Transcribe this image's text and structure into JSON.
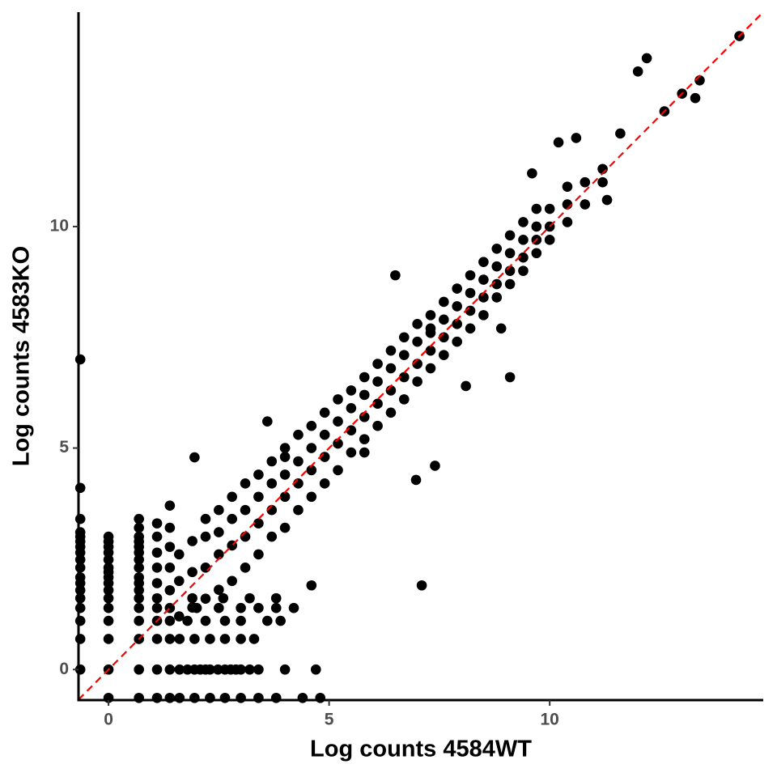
{
  "chart_data": {
    "type": "scatter",
    "x_label": "Log counts 4584WT",
    "y_label": "Log counts 4583KO",
    "xlim": [
      -0.68,
      14.84
    ],
    "ylim": [
      -0.69,
      14.84
    ],
    "xticks": [
      0,
      5,
      10
    ],
    "yticks": [
      0,
      5,
      10
    ],
    "color": "#000000",
    "reference_line": {
      "slope": 1,
      "intercept": 0,
      "color": "#ff0000",
      "dashed": true
    },
    "x": [
      1.6,
      1.6,
      1.6,
      1.9,
      1.9,
      1.9,
      2.2,
      2.2,
      2.2,
      2.2,
      2.5,
      2.5,
      2.5,
      2.5,
      2.8,
      2.8,
      2.8,
      2.8,
      3.1,
      3.1,
      3.1,
      3.1,
      3.4,
      3.4,
      3.4,
      3.4,
      3.7,
      3.7,
      3.7,
      3.7,
      4.0,
      4.0,
      4.0,
      4.0,
      4.3,
      4.3,
      4.3,
      4.3,
      4.6,
      4.6,
      4.6,
      4.6,
      4.9,
      4.9,
      4.9,
      4.9,
      5.2,
      5.2,
      5.2,
      5.2,
      5.5,
      5.5,
      5.5,
      5.5,
      5.8,
      5.8,
      5.8,
      5.8,
      6.1,
      6.1,
      6.1,
      6.1,
      6.4,
      6.4,
      6.4,
      6.4,
      6.7,
      6.7,
      6.7,
      6.7,
      7.0,
      7.0,
      7.0,
      7.0,
      7.3,
      7.3,
      7.3,
      7.3,
      7.6,
      7.6,
      7.6,
      7.6,
      7.9,
      7.9,
      7.9,
      7.9,
      8.2,
      8.2,
      8.2,
      8.2,
      8.5,
      8.5,
      8.5,
      8.5,
      8.8,
      8.8,
      8.8,
      8.8,
      9.1,
      9.1,
      9.1,
      9.1,
      9.4,
      9.4,
      9.4,
      9.4,
      9.7,
      9.7,
      9.7,
      9.7,
      10.0,
      10.0,
      10.0,
      10.4,
      10.4,
      10.4,
      10.8,
      10.8,
      11.2,
      11.2,
      12.0,
      12.2,
      13.3,
      13.4,
      14.3,
      13.0,
      12.6,
      11.6,
      10.6,
      10.2,
      9.6,
      11.3,
      9.1,
      7.1,
      5.8,
      4.6,
      4.0,
      8.9,
      7.3,
      6.5,
      7.4,
      8.1,
      3.6,
      1.95,
      6.97,
      -0.64,
      -0.64,
      -0.64,
      -0.64,
      -0.64,
      -0.64,
      -0.64,
      -0.64,
      -0.64,
      -0.64,
      -0.64,
      -0.64,
      -0.64,
      -0.64,
      -0.64,
      -0.64,
      -0.64,
      -0.64,
      0,
      0,
      0,
      0,
      0,
      0,
      0,
      0,
      0,
      0,
      0,
      0,
      0,
      0,
      0,
      0,
      0.69,
      0.69,
      0.69,
      0.69,
      0.69,
      0.69,
      0.69,
      0.69,
      0.69,
      0.69,
      0.69,
      0.69,
      0.69,
      0.69,
      0.69,
      0.69,
      0.69,
      1.1,
      1.1,
      1.1,
      1.1,
      1.1,
      1.1,
      1.1,
      1.1,
      1.1,
      1.1,
      1.1,
      1.39,
      1.39,
      1.39,
      1.39,
      1.39,
      1.39,
      1.39,
      1.39,
      1.39,
      1.39,
      1.61,
      1.79,
      1.95,
      2.08,
      2.2,
      2.3,
      2.48,
      2.64,
      2.77,
      2.89,
      3.0,
      3.2,
      3.4,
      4.0,
      4.7,
      1.61,
      1.95,
      2.3,
      2.64,
      3.0,
      3.4,
      3.8,
      4.4,
      4.8,
      1.61,
      1.95,
      2.3,
      2.64,
      3.0,
      3.3,
      1.79,
      2.2,
      2.64,
      3.0,
      3.6,
      3.9,
      2.0,
      2.5,
      3.0,
      3.4,
      3.8,
      4.2,
      1.9,
      2.6,
      3.2,
      3.8
    ],
    "values": [
      1.2,
      2.0,
      2.6,
      1.4,
      2.2,
      2.9,
      1.6,
      2.3,
      3.0,
      3.4,
      1.8,
      2.6,
      3.1,
      3.6,
      2.0,
      2.8,
      3.4,
      3.9,
      2.3,
      3.0,
      3.6,
      4.2,
      2.6,
      3.3,
      3.9,
      4.4,
      3.0,
      3.6,
      4.2,
      4.7,
      3.2,
      3.9,
      4.4,
      5.0,
      3.6,
      4.2,
      4.7,
      5.3,
      3.9,
      4.5,
      5.0,
      5.5,
      4.2,
      4.8,
      5.3,
      5.8,
      4.5,
      5.1,
      5.6,
      6.1,
      4.9,
      5.4,
      5.9,
      6.3,
      5.2,
      5.7,
      6.2,
      6.6,
      5.5,
      6.0,
      6.5,
      6.9,
      5.8,
      6.3,
      6.8,
      7.2,
      6.1,
      6.6,
      7.1,
      7.5,
      6.5,
      6.9,
      7.4,
      7.8,
      6.8,
      7.2,
      7.6,
      8.0,
      7.1,
      7.5,
      7.9,
      8.3,
      7.4,
      7.8,
      8.2,
      8.6,
      7.7,
      8.1,
      8.5,
      8.9,
      8.0,
      8.4,
      8.8,
      9.2,
      8.4,
      8.7,
      9.1,
      9.5,
      8.7,
      9.0,
      9.4,
      9.8,
      9.0,
      9.3,
      9.7,
      10.1,
      9.4,
      9.7,
      10.0,
      10.4,
      9.7,
      10.0,
      10.4,
      10.1,
      10.5,
      10.9,
      10.5,
      11.0,
      11.0,
      11.3,
      13.5,
      13.8,
      12.9,
      13.3,
      14.3,
      13.0,
      12.6,
      12.1,
      12.0,
      11.9,
      11.2,
      10.6,
      6.6,
      1.9,
      4.9,
      1.9,
      4.8,
      7.7,
      7.7,
      8.9,
      4.6,
      6.4,
      5.6,
      4.79,
      4.28,
      0,
      0.69,
      1.1,
      1.39,
      1.61,
      1.79,
      1.95,
      2.08,
      2.3,
      2.48,
      2.64,
      2.77,
      2.89,
      3.0,
      3.1,
      3.4,
      4.1,
      7.0,
      -0.64,
      0,
      0.69,
      1.1,
      1.39,
      1.61,
      1.79,
      1.95,
      2.08,
      2.2,
      2.3,
      2.48,
      2.64,
      2.77,
      2.89,
      3.0,
      -0.64,
      0,
      0.69,
      1.1,
      1.39,
      1.61,
      1.79,
      1.95,
      2.08,
      2.3,
      2.48,
      2.64,
      2.77,
      2.89,
      3.0,
      3.2,
      3.4,
      -0.64,
      0,
      0.69,
      1.1,
      1.39,
      1.61,
      1.95,
      2.3,
      2.64,
      3.0,
      3.3,
      -0.64,
      0,
      0.69,
      1.1,
      1.39,
      1.79,
      2.3,
      2.77,
      3.2,
      3.7,
      0,
      0,
      0,
      0,
      0,
      0,
      0,
      0,
      0,
      0,
      0,
      0,
      0,
      0,
      0,
      -0.64,
      -0.64,
      -0.64,
      -0.64,
      -0.64,
      -0.64,
      -0.64,
      -0.64,
      -0.64,
      0.69,
      0.69,
      0.69,
      0.69,
      0.69,
      0.69,
      1.1,
      1.1,
      1.1,
      1.1,
      1.1,
      1.1,
      1.39,
      1.39,
      1.39,
      1.39,
      1.39,
      1.39,
      1.61,
      1.61,
      1.61,
      1.61
    ]
  }
}
